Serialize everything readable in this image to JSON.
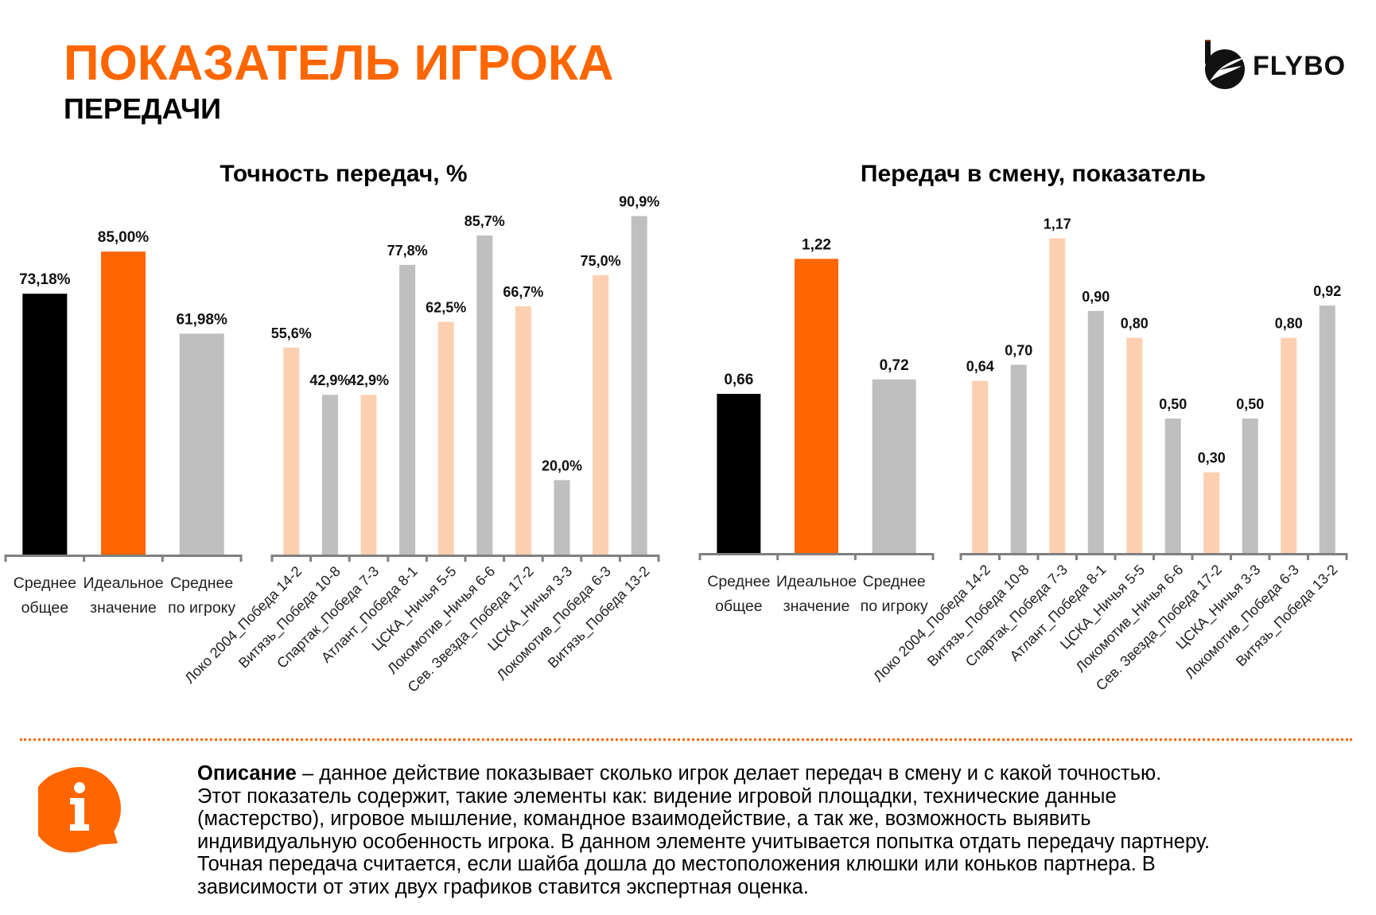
{
  "header": {
    "title": "ПОКАЗАТЕЛЬ ИГРОКА",
    "subtitle": "ПЕРЕДАЧИ",
    "logo_text": "FLYBO"
  },
  "colors": {
    "accent": "#FF6600",
    "average_overall": "#000000",
    "ideal": "#FF6600",
    "player_average": "#BFBFBF",
    "win_game": "#FDD0B1",
    "other_game": "#BFBFBF",
    "axis": "#808080"
  },
  "chart_data": [
    {
      "type": "bar",
      "title": "Точность передач, %",
      "xlabel": "",
      "ylabel": "",
      "grid": false,
      "summary": {
        "categories": [
          [
            "Среднее",
            "общее"
          ],
          [
            "Идеальное",
            "значение"
          ],
          [
            "Среднее",
            "по игроку"
          ]
        ],
        "values": [
          73.18,
          85.0,
          61.98
        ],
        "labels": [
          "73,18%",
          "85,00%",
          "61,98%"
        ],
        "colors": [
          "#000000",
          "#FF6600",
          "#BFBFBF"
        ]
      },
      "games": {
        "categories": [
          "Локо 2004_Победа 14-2",
          "Витязь_Победа 10-8",
          "Спартак_Победа 7-3",
          "Атлант_Победа 8-1",
          "ЦСКА_Ничья 5-5",
          "Локомотив_Ничья 6-6",
          "Сев. Звезда_Победа 17-2",
          "ЦСКА_Ничья 3-3",
          "Локомотив_Победа 6-3",
          "Витязь_Победа 13-2"
        ],
        "values": [
          55.6,
          42.9,
          42.9,
          77.8,
          62.5,
          85.7,
          66.7,
          20.0,
          75.0,
          90.9
        ],
        "labels": [
          "55,6%",
          "42,9%",
          "42,9%",
          "77,8%",
          "62,5%",
          "85,7%",
          "66,7%",
          "20,0%",
          "75,0%",
          "90,9%"
        ],
        "colors": [
          "#FDD0B1",
          "#BFBFBF",
          "#FDD0B1",
          "#BFBFBF",
          "#FDD0B1",
          "#BFBFBF",
          "#FDD0B1",
          "#BFBFBF",
          "#FDD0B1",
          "#BFBFBF"
        ]
      }
    },
    {
      "type": "bar",
      "title": "Передач в смену, показатель",
      "xlabel": "",
      "ylabel": "",
      "grid": false,
      "summary": {
        "categories": [
          [
            "Среднее",
            "общее"
          ],
          [
            "Идеальное",
            "значение"
          ],
          [
            "Среднее",
            "по игроку"
          ]
        ],
        "values": [
          0.66,
          1.22,
          0.72
        ],
        "labels": [
          "0,66",
          "1,22",
          "0,72"
        ],
        "colors": [
          "#000000",
          "#FF6600",
          "#BFBFBF"
        ]
      },
      "games": {
        "categories": [
          "Локо 2004_Победа 14-2",
          "Витязь_Победа 10-8",
          "Спартак_Победа 7-3",
          "Атлант_Победа 8-1",
          "ЦСКА_Ничья 5-5",
          "Локомотив_Ничья 6-6",
          "Сев. Звезда_Победа 17-2",
          "ЦСКА_Ничья 3-3",
          "Локомотив_Победа 6-3",
          "Витязь_Победа 13-2"
        ],
        "values": [
          0.64,
          0.7,
          1.17,
          0.9,
          0.8,
          0.5,
          0.3,
          0.5,
          0.8,
          0.92
        ],
        "labels": [
          "0,64",
          "0,70",
          "1,17",
          "0,90",
          "0,80",
          "0,50",
          "0,30",
          "0,50",
          "0,80",
          "0,92"
        ],
        "colors": [
          "#FDD0B1",
          "#BFBFBF",
          "#FDD0B1",
          "#BFBFBF",
          "#FDD0B1",
          "#BFBFBF",
          "#FDD0B1",
          "#BFBFBF",
          "#FDD0B1",
          "#BFBFBF"
        ]
      }
    }
  ],
  "description": {
    "icon": "info-speech-bubble-icon",
    "label": "Описание",
    "lines": [
      " – данное действие показывает сколько игрок делает передач в смену и с какой точностью.",
      "Этот показатель содержит, такие элементы как: видение игровой площадки, технические данные",
      "(мастерство), игровое мышление, командное взаимодействие, а так же, возможность выявить",
      "индивидуальную особенность игрока. В данном элементе учитывается попытка отдать передачу партнеру.",
      "Точная передача считается, если шайба дошла до местоположения клюшки или коньков партнера. В",
      "зависимости от этих двух графиков ставится экспертная оценка."
    ]
  }
}
